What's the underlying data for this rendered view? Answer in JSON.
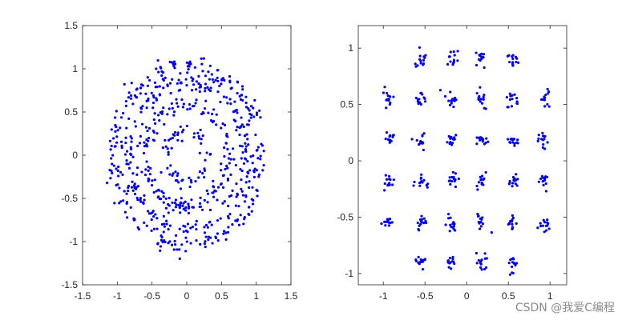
{
  "watermark": "CSDN @我爱C编程",
  "colors": {
    "marker": "#0000ee",
    "axes": "#262626",
    "background": "#ffffff"
  },
  "chart_data": [
    {
      "type": "scatter",
      "title": "",
      "xlabel": "",
      "ylabel": "",
      "xlim": [
        -1.5,
        1.5
      ],
      "ylim": [
        -1.5,
        1.5
      ],
      "xticks": [
        -1.5,
        -1,
        -0.5,
        0,
        0.5,
        1,
        1.5
      ],
      "yticks": [
        -1.5,
        -1,
        -0.5,
        0,
        0.5,
        1,
        1.5
      ],
      "xtick_labels": [
        "-1.5",
        "-1",
        "-0.5",
        "0",
        "0.5",
        "1",
        "1.5"
      ],
      "ytick_labels": [
        "-1.5",
        "-1",
        "-0.5",
        "0",
        "0.5",
        "1",
        "1.5"
      ],
      "grid": false,
      "series": [
        {
          "description_of_shape": "",
          "radius": 0.3,
          "points": 60,
          "jitter": 0.04
        },
        {
          "description_of_shape": "",
          "radius": 0.6,
          "points": 170,
          "jitter": 0.05
        },
        {
          "description_of_shape": "",
          "radius": 0.85,
          "points": 220,
          "jitter": 0.05
        },
        {
          "description_of_shape": "",
          "radius": 1.05,
          "points": 260,
          "jitter": 0.06
        }
      ]
    },
    {
      "type": "scatter",
      "title": "",
      "xlabel": "",
      "ylabel": "",
      "xlim": [
        -1.3,
        1.2
      ],
      "ylim": [
        -1.1,
        1.2
      ],
      "xticks": [
        -1,
        -0.5,
        0,
        0.5,
        1
      ],
      "yticks": [
        -1,
        -0.5,
        0,
        0.5,
        1
      ],
      "xtick_labels": [
        "-1",
        "-0.5",
        "0",
        "0.5",
        "1"
      ],
      "ytick_labels": [
        "-1",
        "-0.5",
        "0",
        "0.5",
        "1"
      ],
      "grid": false,
      "cluster_rows_y": [
        0.9,
        0.55,
        0.18,
        -0.18,
        -0.55,
        -0.9
      ],
      "cluster_cols_x": [
        -0.93,
        -0.55,
        -0.18,
        0.18,
        0.55,
        0.93
      ],
      "cluster_rows_columns": [
        [
          1,
          2,
          3,
          4
        ],
        [
          0,
          1,
          2,
          3,
          4,
          5
        ],
        [
          0,
          1,
          2,
          3,
          4,
          5
        ],
        [
          0,
          1,
          2,
          3,
          4,
          5
        ],
        [
          0,
          1,
          2,
          3,
          4,
          5
        ],
        [
          1,
          2,
          3,
          4
        ]
      ],
      "points_per_cluster": 14,
      "cluster_spread": 0.035
    }
  ]
}
